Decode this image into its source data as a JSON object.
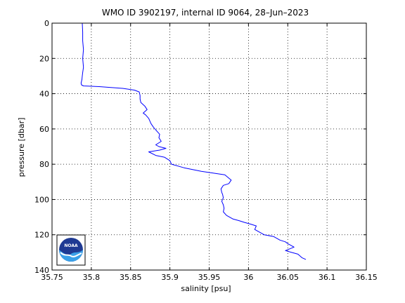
{
  "chart_data": {
    "type": "line",
    "title": "WMO ID 3902197, internal ID 9064, 28–Jun–2023",
    "xlabel": "salinity [psu]",
    "ylabel": "pressure [dbar]",
    "xlim": [
      35.75,
      36.15
    ],
    "ylim": [
      0,
      140
    ],
    "y_reversed": true,
    "grid": true,
    "x_ticks": [
      "35.75",
      "35.8",
      "35.85",
      "35.9",
      "35.95",
      "36",
      "36.05",
      "36.1",
      "36.15"
    ],
    "y_ticks": [
      "0",
      "20",
      "40",
      "60",
      "80",
      "100",
      "120",
      "140"
    ],
    "series": [
      {
        "color": "#0000ff",
        "x": [
          35.7885,
          35.789,
          35.789,
          35.79,
          35.789,
          35.79,
          35.789,
          35.7885,
          35.788,
          35.7875,
          35.787,
          35.7875,
          35.79,
          35.81,
          35.84,
          35.855,
          35.861,
          35.862,
          35.862,
          35.863,
          35.868,
          35.871,
          35.866,
          35.869,
          35.873,
          35.876,
          35.879,
          35.883,
          35.887,
          35.886,
          35.889,
          35.882,
          35.886,
          35.895,
          35.887,
          35.873,
          35.882,
          35.893,
          35.9,
          35.902,
          35.918,
          35.94,
          35.97,
          35.978,
          35.975,
          35.968,
          35.965,
          35.966,
          35.967,
          35.968,
          35.966,
          35.968,
          35.969,
          35.968,
          35.972,
          35.98,
          35.988,
          35.995,
          36.003,
          36.01,
          36.008,
          36.02,
          36.032,
          36.04,
          36.047,
          36.05,
          36.058,
          36.047,
          36.055,
          36.063,
          36.068,
          36.073
        ],
        "y": [
          0,
          5,
          10,
          15,
          20,
          25,
          28,
          30,
          32,
          33,
          34,
          35,
          35.6,
          36,
          37,
          38,
          39,
          41,
          43,
          45,
          47,
          49,
          51,
          52,
          54,
          57,
          59,
          61,
          63,
          65,
          67,
          69,
          70,
          71,
          72,
          73,
          75,
          76,
          78,
          80,
          82,
          84,
          86,
          89,
          91,
          92,
          94,
          96,
          97,
          99,
          101,
          103,
          105,
          107,
          109,
          111,
          112,
          113,
          114,
          115,
          117,
          120,
          121,
          123,
          124,
          125,
          127,
          129,
          130,
          131,
          133,
          134
        ]
      }
    ]
  },
  "logo_text": "NOAA"
}
